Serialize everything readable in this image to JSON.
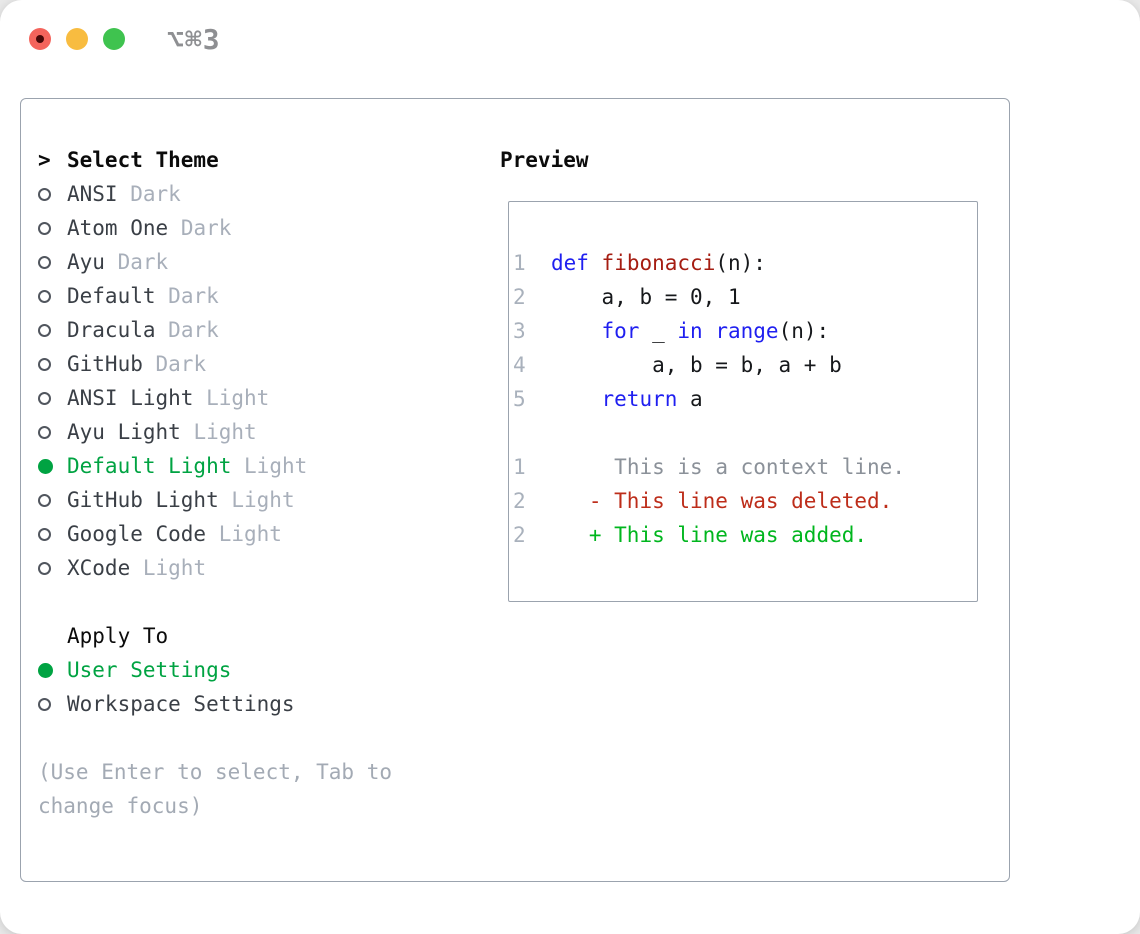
{
  "window": {
    "title": "⌥⌘3",
    "traffic_lights": [
      {
        "name": "close",
        "color": "#f4645c",
        "modified_dot": true
      },
      {
        "name": "minimize",
        "color": "#f8bc40"
      },
      {
        "name": "zoom",
        "color": "#3fc34f"
      }
    ]
  },
  "colors": {
    "selected_green": "#00a342",
    "variant_tag_gray": "#a8afba",
    "item_text": "#3a3f46",
    "panel_border": "#9ba3ae",
    "keyword_blue": "#1f1ff0",
    "function_red": "#a51d12",
    "line_number_gray": "#a9b1bc",
    "context_gray": "#8b9199",
    "deleted_red": "#bd2d1a",
    "added_green": "#00b61e"
  },
  "theme_selector": {
    "cursor": ">",
    "header": "Select Theme",
    "themes": [
      {
        "name": "ANSI",
        "variant": "Dark",
        "selected": false
      },
      {
        "name": "Atom One",
        "variant": "Dark",
        "selected": false
      },
      {
        "name": "Ayu",
        "variant": "Dark",
        "selected": false
      },
      {
        "name": "Default",
        "variant": "Dark",
        "selected": false
      },
      {
        "name": "Dracula",
        "variant": "Dark",
        "selected": false
      },
      {
        "name": "GitHub",
        "variant": "Dark",
        "selected": false
      },
      {
        "name": "ANSI Light",
        "variant": "Light",
        "selected": false
      },
      {
        "name": "Ayu Light",
        "variant": "Light",
        "selected": false
      },
      {
        "name": "Default Light",
        "variant": "Light",
        "selected": true
      },
      {
        "name": "GitHub Light",
        "variant": "Light",
        "selected": false
      },
      {
        "name": "Google Code",
        "variant": "Light",
        "selected": false
      },
      {
        "name": "XCode",
        "variant": "Light",
        "selected": false
      }
    ],
    "apply_to": {
      "header": "Apply To",
      "options": [
        {
          "label": "User Settings",
          "selected": true
        },
        {
          "label": "Workspace Settings",
          "selected": false
        }
      ]
    },
    "hint": "(Use Enter to select, Tab to change focus)"
  },
  "preview": {
    "heading": "Preview",
    "code_lines": [
      {
        "segments": [
          {
            "t": "1",
            "c": "ln"
          },
          {
            "t": "  ",
            "c": "pl"
          },
          {
            "t": "def",
            "c": "kw"
          },
          {
            "t": " ",
            "c": "pl"
          },
          {
            "t": "fibonacci",
            "c": "fn"
          },
          {
            "t": "(n):",
            "c": "pl"
          }
        ]
      },
      {
        "segments": [
          {
            "t": "2",
            "c": "ln"
          },
          {
            "t": "      a, b = 0, 1",
            "c": "pl"
          }
        ]
      },
      {
        "segments": [
          {
            "t": "3",
            "c": "ln"
          },
          {
            "t": "      ",
            "c": "pl"
          },
          {
            "t": "for",
            "c": "kw"
          },
          {
            "t": " _ ",
            "c": "pl"
          },
          {
            "t": "in",
            "c": "kw"
          },
          {
            "t": " ",
            "c": "pl"
          },
          {
            "t": "range",
            "c": "kw"
          },
          {
            "t": "(n):",
            "c": "pl"
          }
        ]
      },
      {
        "segments": [
          {
            "t": "4",
            "c": "ln"
          },
          {
            "t": "          a, b = b, a + b",
            "c": "pl"
          }
        ]
      },
      {
        "segments": [
          {
            "t": "5",
            "c": "ln"
          },
          {
            "t": "      ",
            "c": "pl"
          },
          {
            "t": "return",
            "c": "kw"
          },
          {
            "t": " a",
            "c": "pl"
          }
        ]
      },
      {
        "segments": []
      },
      {
        "segments": [
          {
            "t": "1",
            "c": "ln"
          },
          {
            "t": "       ",
            "c": "pl"
          },
          {
            "t": "This is a context line.",
            "c": "ctx"
          }
        ]
      },
      {
        "segments": [
          {
            "t": "2",
            "c": "ln"
          },
          {
            "t": "     ",
            "c": "pl"
          },
          {
            "t": "- This line was deleted.",
            "c": "del"
          }
        ]
      },
      {
        "segments": [
          {
            "t": "2",
            "c": "ln"
          },
          {
            "t": "     ",
            "c": "pl"
          },
          {
            "t": "+ This line was added.",
            "c": "add"
          }
        ]
      }
    ]
  }
}
